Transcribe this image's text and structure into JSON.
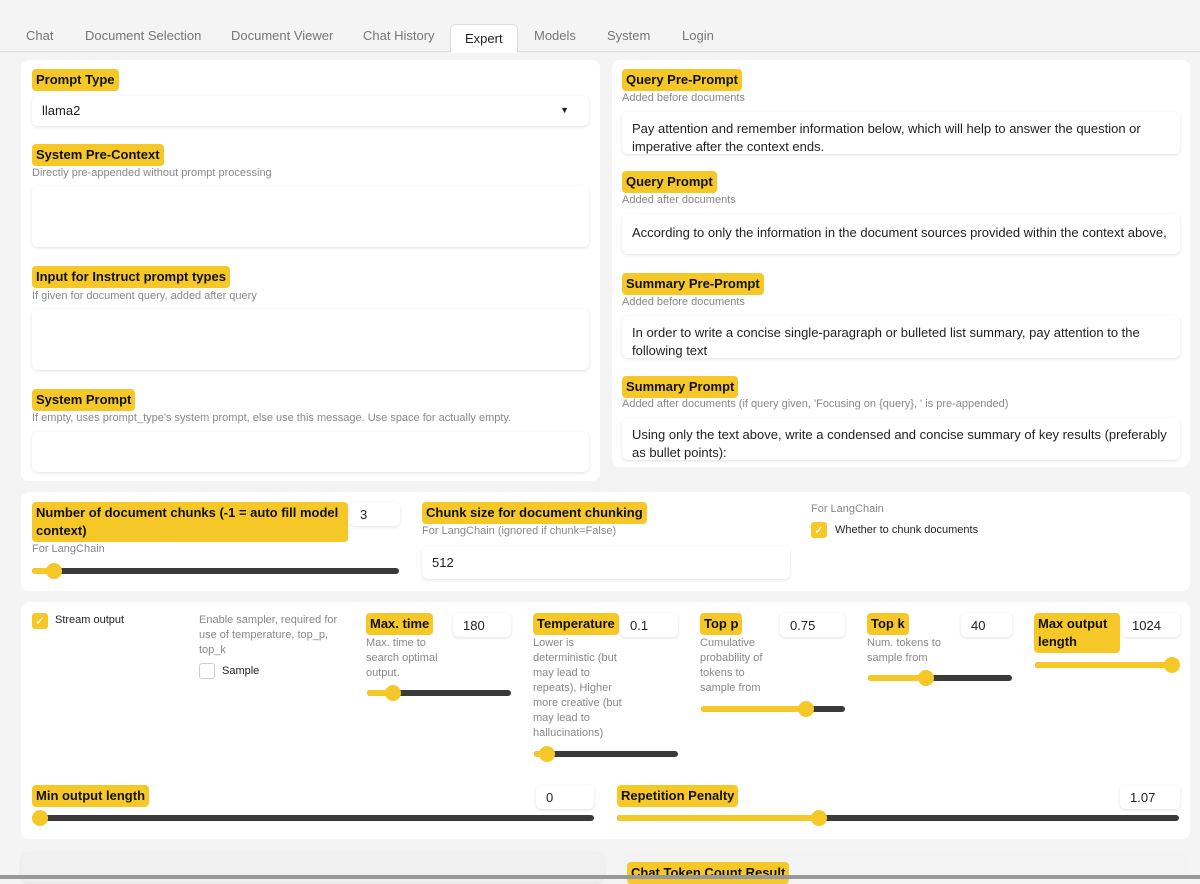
{
  "tabs": [
    "Chat",
    "Document Selection",
    "Document Viewer",
    "Chat History",
    "Expert",
    "Models",
    "System",
    "Login"
  ],
  "active_tab": "Expert",
  "accent": "#f5c827",
  "left": {
    "prompt_type": {
      "label": "Prompt Type",
      "value": "llama2"
    },
    "system_pre_context": {
      "label": "System Pre-Context",
      "info": "Directly pre-appended without prompt processing",
      "value": ""
    },
    "instruct_input": {
      "label": "Input for Instruct prompt types",
      "info": "If given for document query, added after query",
      "value": ""
    },
    "system_prompt": {
      "label": "System Prompt",
      "info": "If empty, uses prompt_type's system prompt, else use this message. Use space for actually empty.",
      "value": ""
    }
  },
  "right": {
    "query_pre_prompt": {
      "label": "Query Pre-Prompt",
      "info": "Added before documents",
      "value": "Pay attention and remember information below, which will help to answer the question or imperative after the context ends."
    },
    "query_prompt": {
      "label": "Query Prompt",
      "info": "Added after documents",
      "value": "According to only the information in the document sources provided within the context above,"
    },
    "summary_pre_prompt": {
      "label": "Summary Pre-Prompt",
      "info": "Added before documents",
      "value": "In order to write a concise single-paragraph or bulleted list summary, pay attention to the following text"
    },
    "summary_prompt": {
      "label": "Summary Prompt",
      "info": "Added after documents (if query given, 'Focusing on {query}, ' is pre-appended)",
      "value": "Using only the text above, write a condensed and concise summary of key results (preferably as bullet points):"
    }
  },
  "chunks": {
    "num_chunks": {
      "label": "Number of document chunks (-1 = auto fill model context)",
      "info": "For LangChain",
      "value": "3",
      "fill": 0.06
    },
    "chunk_size": {
      "label": "Chunk size for document chunking",
      "info": "For LangChain (ignored if chunk=False)",
      "value": "512"
    },
    "chunk": {
      "info": "For LangChain",
      "label": "Whether to chunk documents",
      "checked": true
    }
  },
  "gen": {
    "stream": {
      "label": "Stream output",
      "checked": true
    },
    "sample": {
      "info": "Enable sampler, required for use of temperature, top_p, top_k",
      "label": "Sample",
      "checked": false
    },
    "max_time": {
      "label": "Max. time",
      "info": "Max. time to search optimal output.",
      "value": "180",
      "fill": 0.18
    },
    "temperature": {
      "label": "Temperature",
      "info": "Lower is deterministic (but may lead to repeats), Higher more creative (but may lead to hallucinations)",
      "value": "0.1",
      "fill": 0.09
    },
    "top_p": {
      "label": "Top p",
      "info": "Cumulative probability of tokens to sample from",
      "value": "0.75",
      "fill": 0.73
    },
    "top_k": {
      "label": "Top k",
      "info": "Num. tokens to sample from",
      "value": "40",
      "fill": 0.4
    },
    "max_len": {
      "label": "Max output length",
      "value": "1024",
      "fill": 1.0
    },
    "min_len": {
      "label": "Min output length",
      "value": "0",
      "fill": 0.0
    },
    "rep_penalty": {
      "label": "Repetition Penalty",
      "value": "1.07",
      "fill": 0.36
    }
  },
  "bottom": {
    "token_count_label": "Chat Token Count Result"
  }
}
